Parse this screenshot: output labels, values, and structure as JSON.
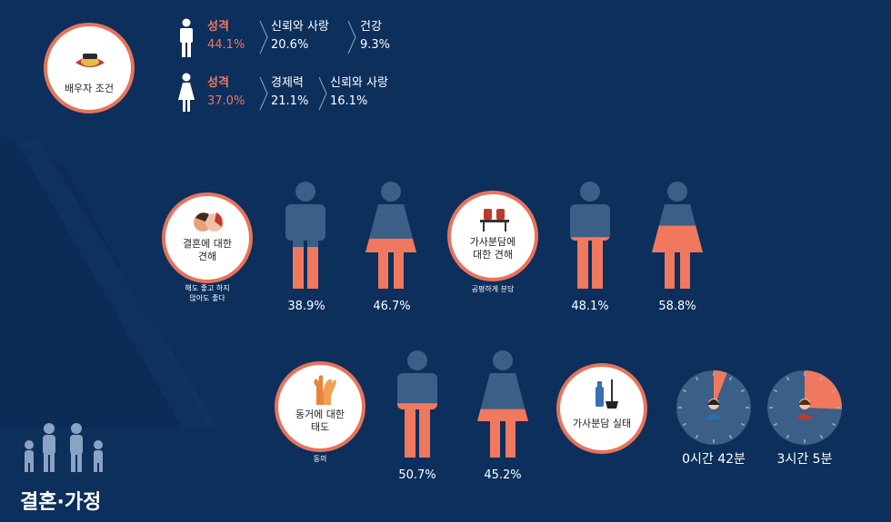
{
  "spouse": {
    "circle_label": "배우자 조건",
    "male": {
      "items": [
        {
          "label": "성격",
          "value": "44.1%"
        },
        {
          "label": "신뢰와 사랑",
          "value": "20.6%"
        },
        {
          "label": "건강",
          "value": "9.3%"
        }
      ]
    },
    "female": {
      "items": [
        {
          "label": "성격",
          "value": "37.0%"
        },
        {
          "label": "경제력",
          "value": "21.1%"
        },
        {
          "label": "신뢰와 사랑",
          "value": "16.1%"
        }
      ]
    }
  },
  "marriage": {
    "circle_label_1": "결혼에 대한",
    "circle_label_2": "견해",
    "sub_1": "해도 좋고 하지",
    "sub_2": "않아도 좋다",
    "male_pct": "38.9%",
    "female_pct": "46.7%",
    "male_fill": 0.389,
    "female_fill": 0.467
  },
  "housework_view": {
    "circle_label_1": "가사분담에",
    "circle_label_2": "대한 견해",
    "sub": "공평하게 분담",
    "male_pct": "48.1%",
    "female_pct": "58.8%",
    "male_fill": 0.481,
    "female_fill": 0.588
  },
  "cohabitation": {
    "circle_label_1": "동거에 대한",
    "circle_label_2": "태도",
    "sub": "동의",
    "male_pct": "50.7%",
    "female_pct": "45.2%",
    "male_fill": 0.507,
    "female_fill": 0.452
  },
  "housework_actual": {
    "circle_label": "가사분담 실태",
    "male_time": "0시간 42분",
    "female_time": "3시간 5분",
    "male_fraction": 0.0583,
    "female_fraction": 0.257
  },
  "section_title": "결혼·가정",
  "colors": {
    "background": "#0d2f5c",
    "accent": "#f0785e",
    "figure_dark": "#3b5f87",
    "circle_border": "#e8735a"
  }
}
